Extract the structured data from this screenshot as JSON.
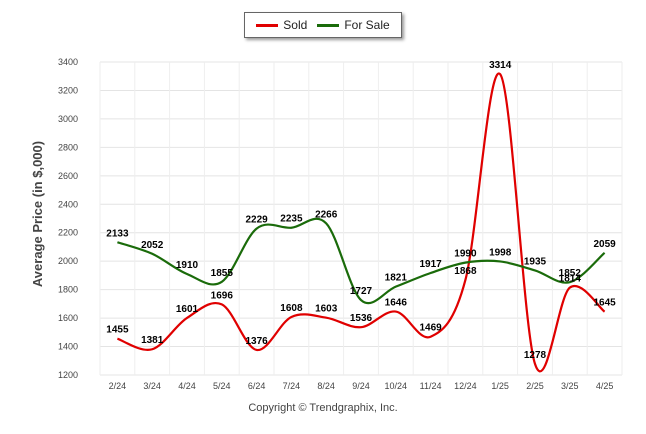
{
  "chart_data": {
    "type": "line",
    "categories": [
      "2/24",
      "3/24",
      "4/24",
      "5/24",
      "6/24",
      "7/24",
      "8/24",
      "9/24",
      "10/24",
      "11/24",
      "12/24",
      "1/25",
      "2/25",
      "3/25",
      "4/25"
    ],
    "series": [
      {
        "name": "Sold",
        "color": "#e00000",
        "values": [
          1455,
          1381,
          1601,
          1696,
          1376,
          1608,
          1603,
          1536,
          1646,
          1469,
          1868,
          3314,
          1278,
          1814,
          1645
        ],
        "labels": [
          "1455",
          "1381",
          "1601",
          "1696",
          "1376",
          "1608",
          "1603",
          "1536",
          "1646",
          "1469",
          "1868",
          "3314",
          "1278",
          "1814",
          "1645"
        ]
      },
      {
        "name": "For Sale",
        "color": "#1a6b0a",
        "values": [
          2133,
          2052,
          1910,
          1855,
          2229,
          2235,
          2266,
          1727,
          1821,
          1917,
          1990,
          1998,
          1935,
          1852,
          2059
        ],
        "labels": [
          "2133",
          "2052",
          "1910",
          "1855",
          "2229",
          "2235",
          "2266",
          "1727",
          "1821",
          "1917",
          "1990",
          "1998",
          "1935",
          "1852",
          "2059"
        ]
      }
    ],
    "ylabel": "Average Price (in $,000)",
    "yticks": [
      1200,
      1400,
      1600,
      1800,
      2000,
      2200,
      2400,
      2600,
      2800,
      3000,
      3200,
      3400
    ],
    "ylim": [
      1200,
      3400
    ],
    "grid": true,
    "legend_position": "top-center"
  },
  "footer": "Copyright © Trendgraphix, Inc."
}
